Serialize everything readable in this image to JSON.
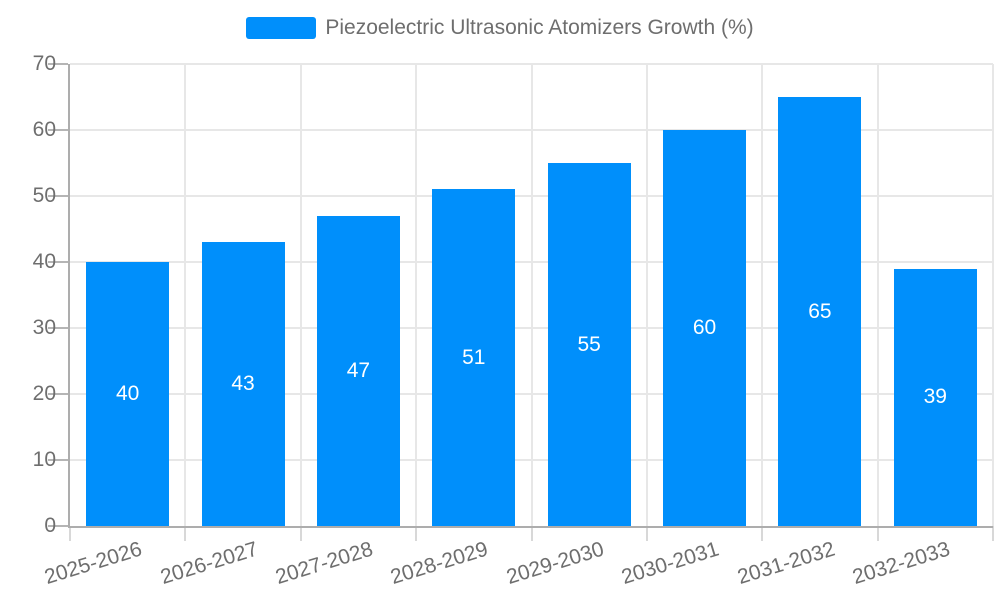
{
  "chart_data": {
    "type": "bar",
    "title": "Piezoelectric Ultrasonic Atomizers Growth (%)",
    "legend_position": "top",
    "categories": [
      "2025-2026",
      "2026-2027",
      "2027-2028",
      "2028-2029",
      "2029-2030",
      "2030-2031",
      "2031-2032",
      "2032-2033"
    ],
    "values": [
      40,
      43,
      47,
      51,
      55,
      60,
      65,
      39
    ],
    "xlabel": "",
    "ylabel": "",
    "ylim": [
      0,
      70
    ],
    "yticks": [
      0,
      10,
      20,
      30,
      40,
      50,
      60,
      70
    ],
    "grid": true,
    "value_labels": "inside-center",
    "x_label_rotation_deg": -17,
    "colors": {
      "bar": "#008FFB",
      "axis_label": "#6e6e6e",
      "grid_line": "#e7e7e7",
      "axis_line": "#adadad",
      "value_label": "#ffffff",
      "background": "#ffffff"
    }
  }
}
